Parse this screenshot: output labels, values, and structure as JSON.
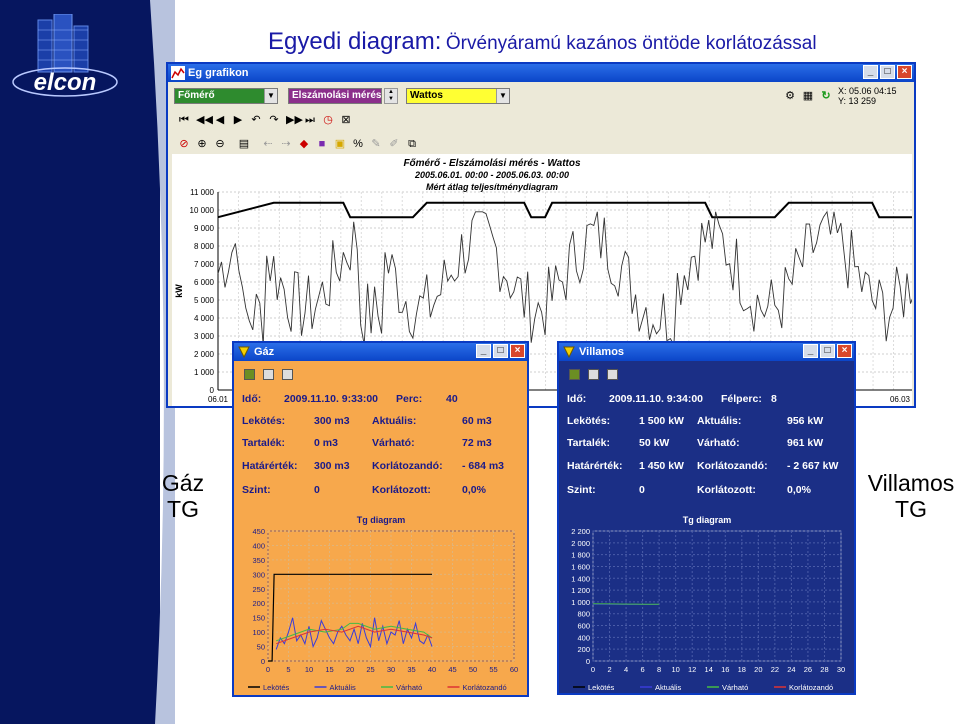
{
  "slide": {
    "title_main": "Egyedi diagram:",
    "title_sub": "Örvényáramú kazános öntöde korlátozással",
    "label_left": [
      "Gáz",
      "TG"
    ],
    "label_right": [
      "Villamos",
      "TG"
    ],
    "logo_text": "elcon"
  },
  "main_window": {
    "title": "Eg grafikon",
    "combo_meter": "Főmérő",
    "combo_type": "Elszámolási mérés",
    "combo_unit": "Wattos",
    "coords_x": "X: 05.06 04:15",
    "coords_y": "Y: 13 259",
    "chart_data": {
      "type": "line",
      "title": "Főmérő - Elszámolási mérés - Wattos",
      "subtitle": "2005.06.01. 00:00 - 2005.06.03. 00:00",
      "subtitle2": "Mért átlag teljesítménydiagram",
      "ylabel": "kW",
      "ylim": [
        0,
        11000
      ],
      "y_ticks": [
        "0",
        "1 000",
        "2 000",
        "3 000",
        "4 000",
        "5 000",
        "6 000",
        "7 000",
        "8 000",
        "9 000",
        "10 000",
        "11 000"
      ],
      "x_tick_first": "06.01",
      "x_tick_last": "06.03",
      "grid": true
    }
  },
  "gas_window": {
    "title": "Gáz",
    "colors": {
      "bg": "#f7a84c"
    },
    "rows": [
      {
        "l1": "Idő:",
        "v1": "2009.11.10. 9:33:00",
        "l2": "Perc:",
        "v2": "40"
      },
      {
        "l1": "Lekötés:",
        "v1": "300 m3",
        "l2": "Aktuális:",
        "v2": "60 m3"
      },
      {
        "l1": "Tartalék:",
        "v1": "0 m3",
        "l2": "Várható:",
        "v2": "72 m3"
      },
      {
        "l1": "Határérték:",
        "v1": "300 m3",
        "l2": "Korlátozandó:",
        "v2": "- 684 m3"
      },
      {
        "l1": "Szint:",
        "v1": "0",
        "l2": "Korlátozott:",
        "v2": "0,0%"
      }
    ],
    "chart_data": {
      "type": "line",
      "title": "Tg diagram",
      "ylim": [
        0,
        450
      ],
      "xlim": [
        0,
        60
      ],
      "y_ticks": [
        "0",
        "50",
        "100",
        "150",
        "200",
        "250",
        "300",
        "350",
        "400",
        "450"
      ],
      "x_ticks": [
        "0",
        "5",
        "10",
        "15",
        "20",
        "25",
        "30",
        "35",
        "40",
        "45",
        "50",
        "55",
        "60"
      ],
      "legend": [
        "Lekötés",
        "Aktuális",
        "Várható",
        "Korlátozandó"
      ],
      "legend_colors": [
        "#000000",
        "#3b3bd8",
        "#44bb44",
        "#dd3333"
      ],
      "series": [
        {
          "name": "Lekötés",
          "x": [
            0,
            1,
            1.5,
            40
          ],
          "values": [
            0,
            0,
            300,
            300
          ]
        },
        {
          "name": "Aktuális",
          "x": [
            2,
            3,
            4,
            5,
            6,
            7,
            8,
            9,
            10,
            11,
            12,
            13,
            14,
            15,
            16,
            17,
            18,
            19,
            20,
            21,
            22,
            23,
            24,
            25,
            26,
            27,
            28,
            29,
            30,
            31,
            32,
            33,
            34,
            35,
            36,
            37,
            38,
            39,
            40
          ],
          "values": [
            40,
            80,
            60,
            100,
            150,
            70,
            90,
            60,
            120,
            50,
            80,
            140,
            110,
            80,
            60,
            100,
            120,
            90,
            70,
            110,
            60,
            130,
            80,
            50,
            150,
            70,
            120,
            60,
            100,
            90,
            140,
            60,
            110,
            80,
            130,
            70,
            60,
            90,
            50
          ]
        },
        {
          "name": "Várható",
          "x": [
            2,
            6,
            10,
            14,
            18,
            20,
            22,
            26,
            30,
            34,
            38,
            40
          ],
          "values": [
            70,
            90,
            110,
            100,
            110,
            130,
            130,
            110,
            120,
            110,
            100,
            80
          ]
        },
        {
          "name": "Korlátozandó",
          "x": [
            2,
            6,
            10,
            14,
            18,
            22,
            26,
            30,
            34,
            38,
            40
          ],
          "values": [
            60,
            80,
            100,
            110,
            100,
            120,
            100,
            110,
            100,
            90,
            80
          ]
        }
      ]
    }
  },
  "elec_window": {
    "title": "Villamos",
    "colors": {
      "bg": "#1b2f86"
    },
    "rows": [
      {
        "l1": "Idő:",
        "v1": "2009.11.10. 9:34:00",
        "l2": "Félperc:",
        "v2": "8"
      },
      {
        "l1": "Lekötés:",
        "v1": "1 500 kW",
        "l2": "Aktuális:",
        "v2": "956 kW"
      },
      {
        "l1": "Tartalék:",
        "v1": "50 kW",
        "l2": "Várható:",
        "v2": "961 kW"
      },
      {
        "l1": "Határérték:",
        "v1": "1 450 kW",
        "l2": "Korlátozandó:",
        "v2": "- 2 667 kW"
      },
      {
        "l1": "Szint:",
        "v1": "0",
        "l2": "Korlátozott:",
        "v2": "0,0%"
      }
    ],
    "chart_data": {
      "type": "line",
      "title": "Tg diagram",
      "ylim": [
        0,
        2200
      ],
      "xlim": [
        0,
        30
      ],
      "y_ticks": [
        "0",
        "200",
        "400",
        "600",
        "800",
        "1 000",
        "1 200",
        "1 400",
        "1 600",
        "1 800",
        "2 000",
        "2 200"
      ],
      "x_ticks": [
        "0",
        "2",
        "4",
        "6",
        "8",
        "10",
        "12",
        "14",
        "16",
        "18",
        "20",
        "22",
        "24",
        "26",
        "28",
        "30"
      ],
      "legend": [
        "Lekötés",
        "Aktuális",
        "Várható",
        "Korlátozandó"
      ],
      "legend_colors": [
        "#000000",
        "#3b3bd8",
        "#44bb44",
        "#dd3333"
      ],
      "series": [
        {
          "name": "Aktuális",
          "x": [
            0,
            2,
            4,
            6,
            8
          ],
          "values": [
            960,
            958,
            957,
            956,
            956
          ]
        },
        {
          "name": "Várható",
          "x": [
            0,
            2,
            4,
            6,
            8
          ],
          "values": [
            970,
            966,
            963,
            961,
            961
          ]
        }
      ]
    }
  }
}
